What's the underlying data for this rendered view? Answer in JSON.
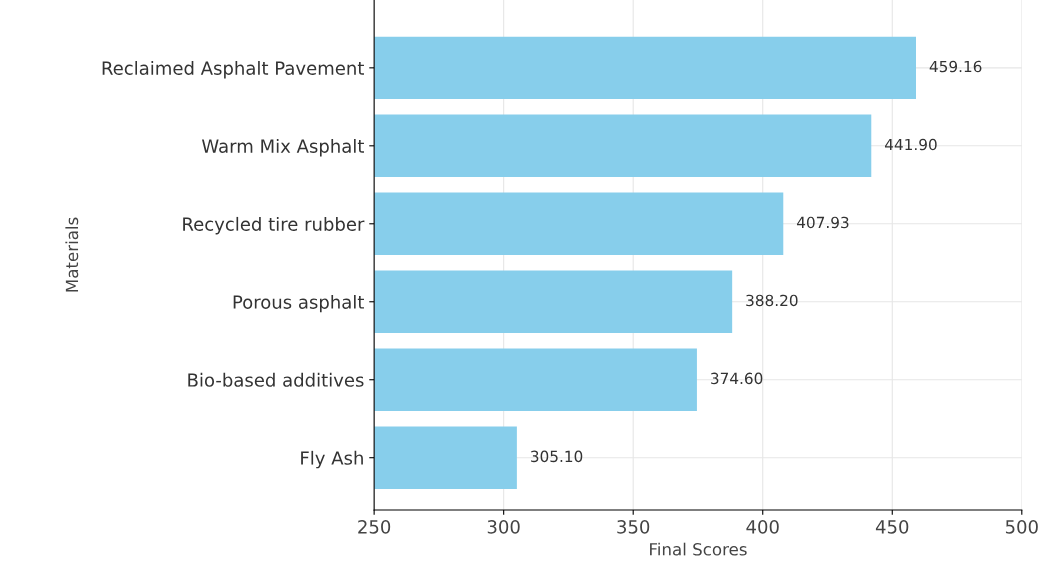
{
  "chart_data": {
    "type": "bar",
    "orientation": "horizontal",
    "xlabel": "Final Scores",
    "ylabel": "Materials",
    "categories": [
      "Reclaimed Asphalt Pavement",
      "Warm Mix Asphalt",
      "Recycled tire rubber",
      "Porous asphalt",
      "Bio-based additives",
      "Fly Ash"
    ],
    "values": [
      459.16,
      441.9,
      407.93,
      388.2,
      374.6,
      305.1
    ],
    "color": "#87ceeb",
    "data_labels": true,
    "value_labels": [
      "459.16",
      "441.90",
      "407.93",
      "388.20",
      "374.60",
      "305.10"
    ],
    "xlim": [
      250,
      500
    ],
    "xticks": [
      250,
      300,
      350,
      400,
      450,
      500
    ],
    "grid": true,
    "legend": false
  }
}
